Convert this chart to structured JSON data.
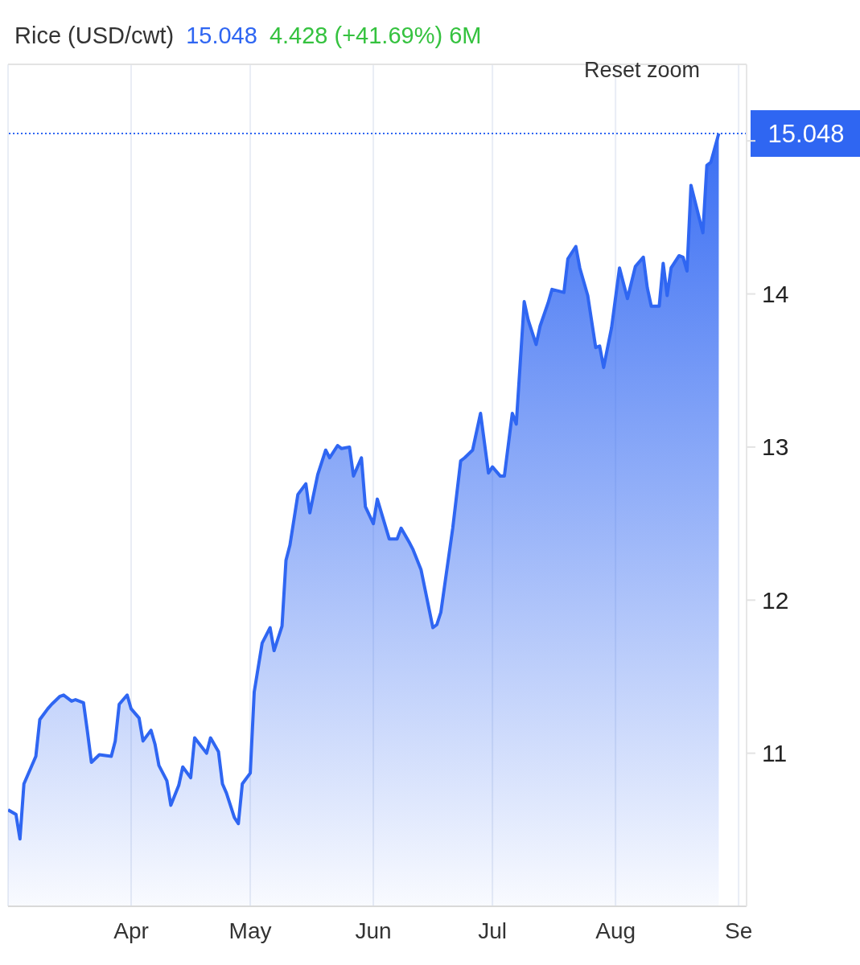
{
  "chart_data": {
    "type": "area",
    "title": "Rice (USD/cwt)",
    "annotations": [
      "15.048",
      "4.428 (+41.69%) 6M",
      "Reset zoom"
    ],
    "x": [
      "--03-01",
      "--03-03",
      "--03-04",
      "--03-05",
      "--03-08",
      "--03-09",
      "--03-11",
      "--03-12",
      "--03-14",
      "--03-15",
      "--03-17",
      "--03-18",
      "--03-20",
      "--03-21",
      "--03-22",
      "--03-24",
      "--03-27",
      "--03-28",
      "--03-29",
      "--03-31",
      "--04-01",
      "--04-03",
      "--04-04",
      "--04-06",
      "--04-07",
      "--04-08",
      "--04-10",
      "--04-11",
      "--04-13",
      "--04-14",
      "--04-16",
      "--04-17",
      "--04-20",
      "--04-21",
      "--04-23",
      "--04-24",
      "--04-25",
      "--04-27",
      "--04-28",
      "--04-29",
      "--05-01",
      "--05-02",
      "--05-04",
      "--05-06",
      "--05-07",
      "--05-09",
      "--05-10",
      "--05-11",
      "--05-13",
      "--05-15",
      "--05-16",
      "--05-18",
      "--05-20",
      "--05-21",
      "--05-23",
      "--05-24",
      "--05-26",
      "--05-27",
      "--05-29",
      "--05-30",
      "--06-01",
      "--06-02",
      "--06-05",
      "--06-07",
      "--06-08",
      "--06-10",
      "--06-11",
      "--06-13",
      "--06-16",
      "--06-17",
      "--06-18",
      "--06-21",
      "--06-23",
      "--06-24",
      "--06-26",
      "--06-28",
      "--06-30",
      "--07-01",
      "--07-03",
      "--07-04",
      "--07-06",
      "--07-07",
      "--07-09",
      "--07-10",
      "--07-12",
      "--07-13",
      "--07-15",
      "--07-16",
      "--07-19",
      "--07-20",
      "--07-22",
      "--07-23",
      "--07-25",
      "--07-27",
      "--07-28",
      "--07-29",
      "--07-31",
      "--08-02",
      "--08-04",
      "--08-06",
      "--08-08",
      "--08-09",
      "--08-10",
      "--08-12",
      "--08-13",
      "--08-14",
      "--08-15",
      "--08-17",
      "--08-18",
      "--08-19",
      "--08-20",
      "--08-23",
      "--08-24",
      "--08-25",
      "--08-27"
    ],
    "values": [
      10.63,
      10.6,
      10.44,
      10.8,
      10.98,
      11.22,
      11.29,
      11.32,
      11.37,
      11.38,
      11.34,
      11.35,
      11.33,
      11.14,
      10.94,
      10.99,
      10.98,
      11.08,
      11.32,
      11.38,
      11.29,
      11.23,
      11.08,
      11.15,
      11.06,
      10.92,
      10.82,
      10.66,
      10.79,
      10.91,
      10.84,
      11.1,
      11.0,
      11.1,
      11.01,
      10.8,
      10.74,
      10.58,
      10.54,
      10.8,
      10.87,
      11.4,
      11.72,
      11.82,
      11.67,
      11.83,
      12.26,
      12.36,
      12.69,
      12.76,
      12.57,
      12.82,
      12.98,
      12.93,
      13.01,
      12.99,
      13.0,
      12.81,
      12.93,
      12.61,
      12.5,
      12.66,
      12.4,
      12.4,
      12.47,
      12.38,
      12.33,
      12.2,
      11.82,
      11.84,
      11.92,
      12.47,
      12.91,
      12.93,
      12.98,
      13.22,
      12.83,
      12.87,
      12.81,
      12.81,
      13.22,
      13.15,
      13.95,
      13.83,
      13.67,
      13.79,
      13.94,
      14.03,
      14.01,
      14.23,
      14.31,
      14.17,
      13.99,
      13.65,
      13.66,
      13.52,
      13.78,
      14.17,
      13.97,
      14.18,
      14.24,
      14.04,
      13.92,
      13.92,
      14.2,
      13.99,
      14.17,
      14.25,
      14.24,
      14.15,
      14.71,
      14.4,
      14.84,
      14.86,
      15.048
    ],
    "color": "#2f66f2",
    "xlim": [
      "--03-01",
      "--09-03"
    ],
    "xticks": [
      {
        "value": "--04-01",
        "label": "Apr"
      },
      {
        "value": "--05-01",
        "label": "May"
      },
      {
        "value": "--06-01",
        "label": "Jun"
      },
      {
        "value": "--07-01",
        "label": "Jul"
      },
      {
        "value": "--08-01",
        "label": "Aug"
      },
      {
        "value": "--09-01",
        "label": "Se"
      }
    ],
    "ylim": [
      10,
      15.5
    ],
    "yticks": [
      11,
      12,
      13,
      14,
      {
        "value": 15,
        "label": null
      }
    ],
    "grid": true,
    "ref_lines": [
      {
        "axis": "y",
        "value": 15.048,
        "label": "15.048",
        "color": "#2f66f2",
        "line_style": "dotted"
      }
    ]
  }
}
